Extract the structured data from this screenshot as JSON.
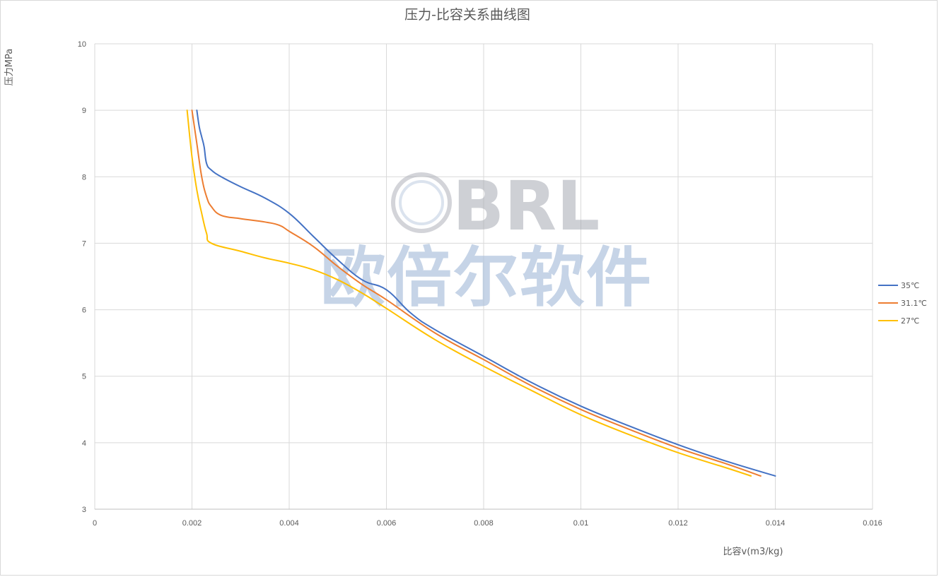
{
  "chart_data": {
    "type": "line",
    "title": "压力-比容关系曲线图",
    "xlabel": "比容v(m3/kg)",
    "ylabel": "压力MPa",
    "xlim": [
      0,
      0.016
    ],
    "ylim": [
      3,
      10
    ],
    "x_ticks": [
      "0",
      "0.002",
      "0.004",
      "0.006",
      "0.008",
      "0.01",
      "0.012",
      "0.014",
      "0.016"
    ],
    "y_ticks": [
      "3",
      "4",
      "5",
      "6",
      "7",
      "8",
      "9",
      "10"
    ],
    "grid": true,
    "legend_position": "right",
    "series": [
      {
        "name": "35℃",
        "color": "#4472c4",
        "points": [
          [
            0.0021,
            9.0
          ],
          [
            0.00215,
            8.75
          ],
          [
            0.0022,
            8.6
          ],
          [
            0.00225,
            8.45
          ],
          [
            0.0023,
            8.2
          ],
          [
            0.0024,
            8.1
          ],
          [
            0.0026,
            8.0
          ],
          [
            0.003,
            7.85
          ],
          [
            0.0035,
            7.68
          ],
          [
            0.004,
            7.45
          ],
          [
            0.0045,
            7.1
          ],
          [
            0.005,
            6.75
          ],
          [
            0.0055,
            6.45
          ],
          [
            0.006,
            6.3
          ],
          [
            0.0065,
            5.95
          ],
          [
            0.007,
            5.7
          ],
          [
            0.008,
            5.3
          ],
          [
            0.009,
            4.9
          ],
          [
            0.01,
            4.55
          ],
          [
            0.011,
            4.25
          ],
          [
            0.012,
            3.97
          ],
          [
            0.013,
            3.72
          ],
          [
            0.014,
            3.5
          ]
        ]
      },
      {
        "name": "31.1℃",
        "color": "#ed7d31",
        "points": [
          [
            0.002,
            9.0
          ],
          [
            0.0021,
            8.5
          ],
          [
            0.0022,
            8.0
          ],
          [
            0.0023,
            7.7
          ],
          [
            0.0024,
            7.55
          ],
          [
            0.0026,
            7.42
          ],
          [
            0.003,
            7.37
          ],
          [
            0.0035,
            7.32
          ],
          [
            0.0038,
            7.27
          ],
          [
            0.004,
            7.18
          ],
          [
            0.0045,
            6.95
          ],
          [
            0.005,
            6.65
          ],
          [
            0.0055,
            6.38
          ],
          [
            0.006,
            6.15
          ],
          [
            0.007,
            5.65
          ],
          [
            0.008,
            5.25
          ],
          [
            0.009,
            4.85
          ],
          [
            0.01,
            4.5
          ],
          [
            0.011,
            4.2
          ],
          [
            0.012,
            3.92
          ],
          [
            0.013,
            3.68
          ],
          [
            0.0137,
            3.5
          ]
        ]
      },
      {
        "name": "27℃",
        "color": "#ffc000",
        "points": [
          [
            0.0019,
            9.0
          ],
          [
            0.002,
            8.3
          ],
          [
            0.0021,
            7.8
          ],
          [
            0.0022,
            7.45
          ],
          [
            0.0023,
            7.15
          ],
          [
            0.0024,
            7.0
          ],
          [
            0.003,
            6.88
          ],
          [
            0.0035,
            6.78
          ],
          [
            0.004,
            6.7
          ],
          [
            0.0045,
            6.6
          ],
          [
            0.005,
            6.45
          ],
          [
            0.0055,
            6.25
          ],
          [
            0.006,
            6.02
          ],
          [
            0.007,
            5.55
          ],
          [
            0.008,
            5.15
          ],
          [
            0.009,
            4.78
          ],
          [
            0.01,
            4.42
          ],
          [
            0.011,
            4.12
          ],
          [
            0.012,
            3.85
          ],
          [
            0.013,
            3.62
          ],
          [
            0.0135,
            3.5
          ]
        ]
      }
    ]
  },
  "watermark": {
    "logo_text": "BRL",
    "text": "欧倍尔软件"
  }
}
